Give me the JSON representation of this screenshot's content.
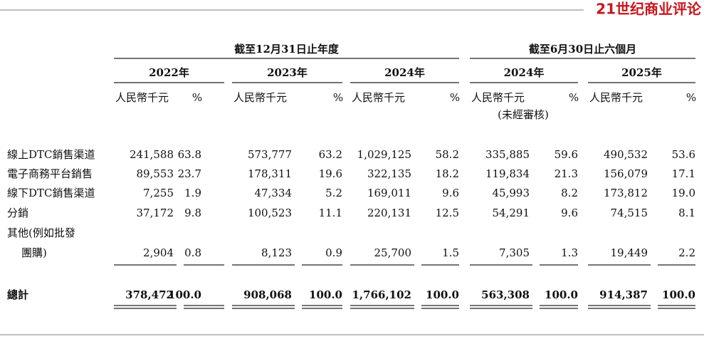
{
  "logo": "21世纪商业评论",
  "table": {
    "group_headers": [
      "截至12月31日止年度",
      "截至6月30日止六個月"
    ],
    "years": [
      "2022年",
      "2023年",
      "2024年",
      "2024年",
      "2025年"
    ],
    "units": [
      {
        "amount": "人民幣千元",
        "pct": "%"
      },
      {
        "amount": "人民幣千元",
        "pct": "%"
      },
      {
        "amount": "人民幣千元",
        "pct": "%"
      },
      {
        "amount": "人民幣千元",
        "pct": "%"
      },
      {
        "amount": "人民幣千元",
        "pct": "%"
      }
    ],
    "note": "(未經審核)",
    "rows": [
      {
        "label": [
          "線上DTC銷售渠道"
        ],
        "values": [
          "241,588",
          "63.8",
          "573,777",
          "63.2",
          "1,029,125",
          "58.2",
          "335,885",
          "59.6",
          "490,532",
          "53.6"
        ]
      },
      {
        "label": [
          "電子商務平台銷售"
        ],
        "values": [
          "89,553",
          "23.7",
          "178,311",
          "19.6",
          "322,135",
          "18.2",
          "119,834",
          "21.3",
          "156,079",
          "17.1"
        ]
      },
      {
        "label": [
          "線下DTC銷售渠道"
        ],
        "values": [
          "7,255",
          "1.9",
          "47,334",
          "5.2",
          "169,011",
          "9.6",
          "45,993",
          "8.2",
          "173,812",
          "19.0"
        ]
      },
      {
        "label": [
          "分銷"
        ],
        "values": [
          "37,172",
          "9.8",
          "100,523",
          "11.1",
          "220,131",
          "12.5",
          "54,291",
          "9.6",
          "74,515",
          "8.1"
        ]
      },
      {
        "label": [
          "其他(例如批發",
          "團購)"
        ],
        "values": [
          "2,904",
          "0.8",
          "8,123",
          "0.9",
          "25,700",
          "1.5",
          "7,305",
          "1.3",
          "19,449",
          "2.2"
        ]
      }
    ],
    "total": {
      "label": "總計",
      "values": [
        "378,472",
        "100.0",
        "908,068",
        "100.0",
        "1,766,102",
        "100.0",
        "563,308",
        "100.0",
        "914,387",
        "100.0"
      ]
    }
  }
}
